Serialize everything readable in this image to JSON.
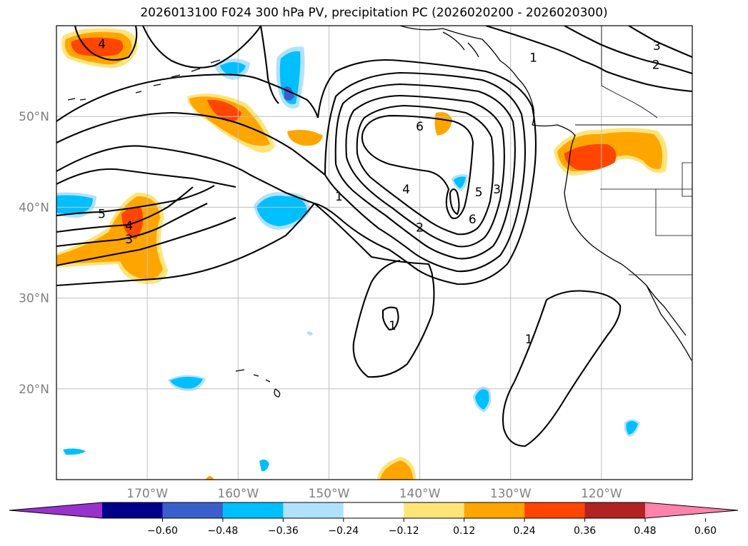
{
  "chart_data": {
    "type": "map-contour",
    "title": "2026013100 F024 300 hPa PV, precipitation PC (2026020200 - 2026020300)",
    "map": {
      "lon_range": [
        -180,
        -110
      ],
      "lat_range": [
        10,
        60
      ],
      "lon_ticks": [
        -170,
        -160,
        -150,
        -140,
        -130,
        -120
      ],
      "lon_tick_labels": [
        "170°W",
        "160°W",
        "150°W",
        "140°W",
        "130°W",
        "120°W"
      ],
      "lat_ticks": [
        20,
        30,
        40,
        50
      ],
      "lat_tick_labels": [
        "20°N",
        "30°N",
        "40°N",
        "50°N"
      ],
      "grid": true
    },
    "pv_contours": {
      "levels": [
        1,
        2,
        3,
        4,
        5,
        6
      ],
      "line_color": "#000000",
      "labels": [
        {
          "text": "4",
          "lon": -175,
          "lat": 58
        },
        {
          "text": "5",
          "lon": -175,
          "lat": 39.3
        },
        {
          "text": "4",
          "lon": -172,
          "lat": 38
        },
        {
          "text": "3",
          "lon": -172,
          "lat": 36.5
        },
        {
          "text": "1",
          "lon": -148.9,
          "lat": 41.2
        },
        {
          "text": "4",
          "lon": -141.5,
          "lat": 42
        },
        {
          "text": "2",
          "lon": -140,
          "lat": 37.8
        },
        {
          "text": "6",
          "lon": -140,
          "lat": 48.9
        },
        {
          "text": "5",
          "lon": -133.5,
          "lat": 41.7
        },
        {
          "text": "6",
          "lon": -134.2,
          "lat": 38.7
        },
        {
          "text": "3",
          "lon": -131.5,
          "lat": 42
        },
        {
          "text": "1",
          "lon": -127.5,
          "lat": 56.5
        },
        {
          "text": "3",
          "lon": -113.9,
          "lat": 57.8
        },
        {
          "text": "2",
          "lon": -114,
          "lat": 55.7
        },
        {
          "text": "1",
          "lon": -143,
          "lat": 27
        },
        {
          "text": "1",
          "lon": -128,
          "lat": 25.5
        }
      ]
    },
    "precip_pc": {
      "colorbar": {
        "boundaries": [
          -0.72,
          -0.6,
          -0.48,
          -0.36,
          -0.24,
          -0.12,
          0.12,
          0.24,
          0.36,
          0.48,
          0.6,
          0.72
        ],
        "tick_labels": [
          "−0.60",
          "−0.48",
          "−0.36",
          "−0.24",
          "−0.12",
          "0.12",
          "0.24",
          "0.36",
          "0.48",
          "0.60"
        ],
        "colors": [
          "#9932cc",
          "#00008b",
          "#3a5fcd",
          "#00bfff",
          "#b0e2ff",
          "#ffffff",
          "#ffe47a",
          "#ffa500",
          "#ff4500",
          "#b22222",
          "#ff82ab"
        ],
        "extend": "both"
      }
    },
    "colors": {
      "frame": "#000000",
      "grid": "#bfbfbf",
      "coast": "#000000",
      "tick_label": "#808080"
    }
  }
}
